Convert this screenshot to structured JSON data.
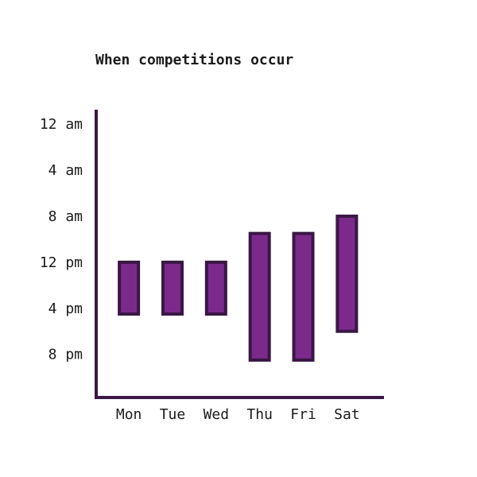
{
  "chart_data": {
    "type": "bar",
    "subtype": "floating-range",
    "title": "When competitions occur",
    "xlabel": "",
    "ylabel": "",
    "categories": [
      "Mon",
      "Tue",
      "Wed",
      "Thu",
      "Fri",
      "Sat"
    ],
    "y_ticks": [
      "12 am",
      "4 am",
      "8 am",
      "12 pm",
      "4 pm",
      "8 pm"
    ],
    "y_tick_hours": [
      0,
      4,
      8,
      12,
      16,
      20
    ],
    "y_axis_inverted": true,
    "ylim_hours": [
      -1.25,
      23.75
    ],
    "series": [
      {
        "ranges_hours": [
          [
            12,
            16.5
          ],
          [
            12,
            16.5
          ],
          [
            12,
            16.5
          ],
          [
            9.5,
            20.5
          ],
          [
            9.5,
            20.5
          ],
          [
            8,
            18
          ]
        ]
      }
    ],
    "grid": false,
    "legend": "none",
    "colors": {
      "bar_fill": "#7b2a8c",
      "bar_stroke": "#3a1745",
      "axis": "#3a1745",
      "text": "#1b1b1b"
    }
  }
}
